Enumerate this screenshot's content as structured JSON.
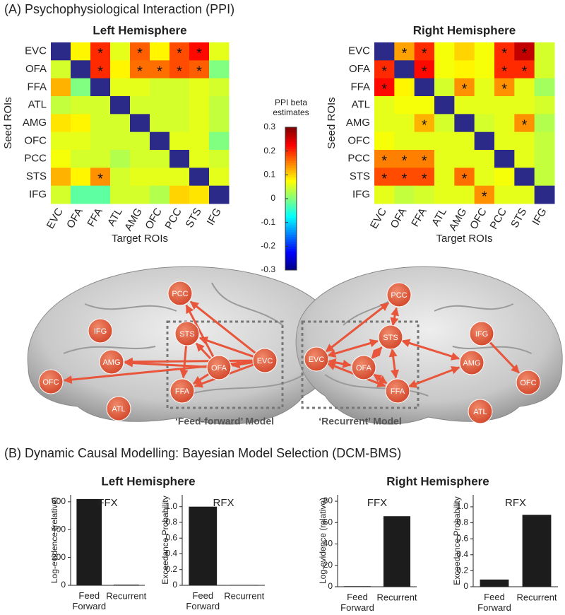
{
  "panel_a": {
    "title": "(A) Psychophysiological Interaction (PPI)"
  },
  "panel_b": {
    "title": "(B) Dynamic Causal Modelling: Bayesian Model Selection (DCM-BMS)",
    "left_title": "Left Hemisphere",
    "right_title": "Right Hemisphere"
  },
  "colorbar": {
    "label": "PPI beta estimates",
    "lim": [
      -0.3,
      0.3
    ],
    "ticks": [
      0.3,
      0.2,
      0.1,
      0,
      -0.1,
      -0.2,
      -0.3
    ],
    "colormap": "jet"
  },
  "chart_data": [
    {
      "type": "heatmap",
      "title": "Left Hemisphere",
      "xlabel": "Target ROIs",
      "ylabel": "Seed ROIs",
      "categories": [
        "EVC",
        "OFA",
        "FFA",
        "ATL",
        "AMG",
        "OFC",
        "PCC",
        "STS",
        "IFG"
      ],
      "values": [
        [
          null,
          0.08,
          0.2,
          0.06,
          0.17,
          0.08,
          0.18,
          0.22,
          0.06
        ],
        [
          0.05,
          null,
          0.2,
          0.08,
          0.16,
          0.16,
          0.18,
          0.17,
          0.0
        ],
        [
          0.12,
          0.0,
          null,
          0.06,
          0.06,
          0.05,
          0.05,
          0.06,
          0.05
        ],
        [
          0.04,
          0.05,
          0.05,
          null,
          0.05,
          0.05,
          0.05,
          0.06,
          0.04
        ],
        [
          0.09,
          0.08,
          0.05,
          0.05,
          null,
          0.05,
          0.05,
          0.06,
          0.04
        ],
        [
          0.06,
          0.06,
          0.05,
          0.05,
          0.05,
          null,
          0.06,
          0.06,
          0.0
        ],
        [
          0.07,
          0.05,
          0.05,
          0.03,
          0.05,
          0.05,
          null,
          0.06,
          0.05
        ],
        [
          0.12,
          0.08,
          0.14,
          0.05,
          0.06,
          0.06,
          0.06,
          null,
          0.06
        ],
        [
          0.05,
          -0.02,
          -0.02,
          0.05,
          0.05,
          0.03,
          0.1,
          0.09,
          null
        ]
      ],
      "marker": "*",
      "significant": [
        [
          0,
          2
        ],
        [
          0,
          4
        ],
        [
          0,
          6
        ],
        [
          0,
          7
        ],
        [
          1,
          2
        ],
        [
          1,
          4
        ],
        [
          1,
          5
        ],
        [
          1,
          6
        ],
        [
          1,
          7
        ],
        [
          7,
          2
        ]
      ]
    },
    {
      "type": "heatmap",
      "title": "Right Hemisphere",
      "xlabel": "Target ROIs",
      "ylabel": "Seed ROIs",
      "categories": [
        "EVC",
        "OFA",
        "FFA",
        "ATL",
        "AMG",
        "OFC",
        "PCC",
        "STS",
        "IFG"
      ],
      "values": [
        [
          null,
          0.13,
          0.2,
          0.07,
          0.1,
          0.07,
          0.2,
          0.26,
          0.05
        ],
        [
          0.2,
          null,
          0.22,
          0.07,
          0.08,
          0.07,
          0.2,
          0.2,
          0.05
        ],
        [
          0.22,
          0.08,
          null,
          0.05,
          0.14,
          0.06,
          0.14,
          0.06,
          0.02
        ],
        [
          0.06,
          0.07,
          0.07,
          null,
          0.06,
          0.06,
          0.06,
          0.06,
          0.05
        ],
        [
          0.06,
          0.06,
          0.12,
          0.05,
          null,
          0.05,
          0.06,
          0.14,
          0.03
        ],
        [
          0.07,
          0.06,
          0.06,
          0.06,
          0.06,
          null,
          0.06,
          0.06,
          0.04
        ],
        [
          0.15,
          0.15,
          0.15,
          0.06,
          0.06,
          0.06,
          null,
          0.06,
          0.04
        ],
        [
          0.18,
          0.18,
          0.18,
          0.06,
          0.16,
          0.06,
          0.07,
          null,
          0.04
        ],
        [
          0.06,
          0.04,
          0.05,
          0.06,
          0.06,
          0.14,
          0.06,
          0.06,
          null
        ]
      ],
      "marker": "*",
      "significant": [
        [
          0,
          1
        ],
        [
          0,
          2
        ],
        [
          0,
          6
        ],
        [
          0,
          7
        ],
        [
          1,
          0
        ],
        [
          1,
          2
        ],
        [
          1,
          6
        ],
        [
          1,
          7
        ],
        [
          2,
          0
        ],
        [
          2,
          4
        ],
        [
          2,
          6
        ],
        [
          4,
          2
        ],
        [
          4,
          7
        ],
        [
          6,
          0
        ],
        [
          6,
          1
        ],
        [
          6,
          2
        ],
        [
          7,
          0
        ],
        [
          7,
          1
        ],
        [
          7,
          2
        ],
        [
          7,
          4
        ],
        [
          8,
          5
        ]
      ]
    },
    {
      "type": "bar",
      "title": "FFX",
      "ylabel": "Log-evidence (relative)",
      "categories": [
        "Feed Forward",
        "Recurrent"
      ],
      "values": [
        620,
        5
      ],
      "color": "#1c1c1c",
      "ylim": [
        0,
        650
      ],
      "yticks": [
        0,
        200,
        400,
        600
      ]
    },
    {
      "type": "bar",
      "title": "RFX",
      "ylabel": "Exceedance Probability",
      "categories": [
        "Feed Forward",
        "Recurrent"
      ],
      "values": [
        1,
        0.005
      ],
      "color": "#1c1c1c",
      "ylim": [
        0,
        1.15
      ],
      "yticks": [
        0,
        0.2,
        0.4,
        0.6,
        0.8,
        {
          "value": 1,
          "label": "1.0"
        }
      ]
    },
    {
      "type": "bar",
      "title": "FFX",
      "ylabel": "Log-evidence (relative)",
      "categories": [
        "Feed Forward",
        "Recurrent"
      ],
      "values": [
        0.5,
        66
      ],
      "color": "#1c1c1c",
      "ylim": [
        0,
        86
      ],
      "yticks": [
        0,
        20,
        40,
        60,
        80
      ]
    },
    {
      "type": "bar",
      "title": "RFX",
      "ylabel": "Exceedance Probability",
      "categories": [
        "Feed Forward",
        "Recurrent"
      ],
      "values": [
        0.09,
        0.9
      ],
      "color": "#1c1c1c",
      "ylim": [
        0,
        1.15
      ],
      "yticks": [
        0,
        0.2,
        0.4,
        0.6,
        0.8,
        {
          "value": 1,
          "label": "1.0"
        }
      ]
    }
  ],
  "diagrams": [
    {
      "caption": "‘Feed-forward’ Model",
      "nodes": [
        "PCC",
        "IFG",
        "STS",
        "AMG",
        "OFA",
        "EVC",
        "OFC",
        "FFA",
        "ATL"
      ],
      "edges": [
        {
          "from": 5,
          "to": 0,
          "both": false
        },
        {
          "from": 5,
          "to": 2,
          "both": false
        },
        {
          "from": 5,
          "to": 3,
          "both": false
        },
        {
          "from": 5,
          "to": 6,
          "both": false
        },
        {
          "from": 5,
          "to": 7,
          "both": false
        },
        {
          "from": 5,
          "to": 4,
          "both": false
        },
        {
          "from": 4,
          "to": 0,
          "both": false
        },
        {
          "from": 4,
          "to": 2,
          "both": false
        },
        {
          "from": 4,
          "to": 3,
          "both": false
        },
        {
          "from": 4,
          "to": 7,
          "both": false
        },
        {
          "from": 2,
          "to": 7,
          "both": false
        }
      ]
    },
    {
      "caption": "‘Recurrent’ Model",
      "nodes": [
        "PCC",
        "STS",
        "IFG",
        "EVC",
        "OFA",
        "AMG",
        "FFA",
        "OFC",
        "ATL"
      ],
      "edges": [
        {
          "from": 3,
          "to": 0,
          "both": true
        },
        {
          "from": 3,
          "to": 1,
          "both": true
        },
        {
          "from": 3,
          "to": 4,
          "both": true
        },
        {
          "from": 3,
          "to": 6,
          "both": true
        },
        {
          "from": 4,
          "to": 1,
          "both": true
        },
        {
          "from": 4,
          "to": 6,
          "both": true
        },
        {
          "from": 1,
          "to": 6,
          "both": true
        },
        {
          "from": 1,
          "to": 0,
          "both": true
        },
        {
          "from": 1,
          "to": 5,
          "both": true
        },
        {
          "from": 6,
          "to": 5,
          "both": true
        },
        {
          "from": 2,
          "to": 7,
          "both": false
        }
      ]
    }
  ]
}
